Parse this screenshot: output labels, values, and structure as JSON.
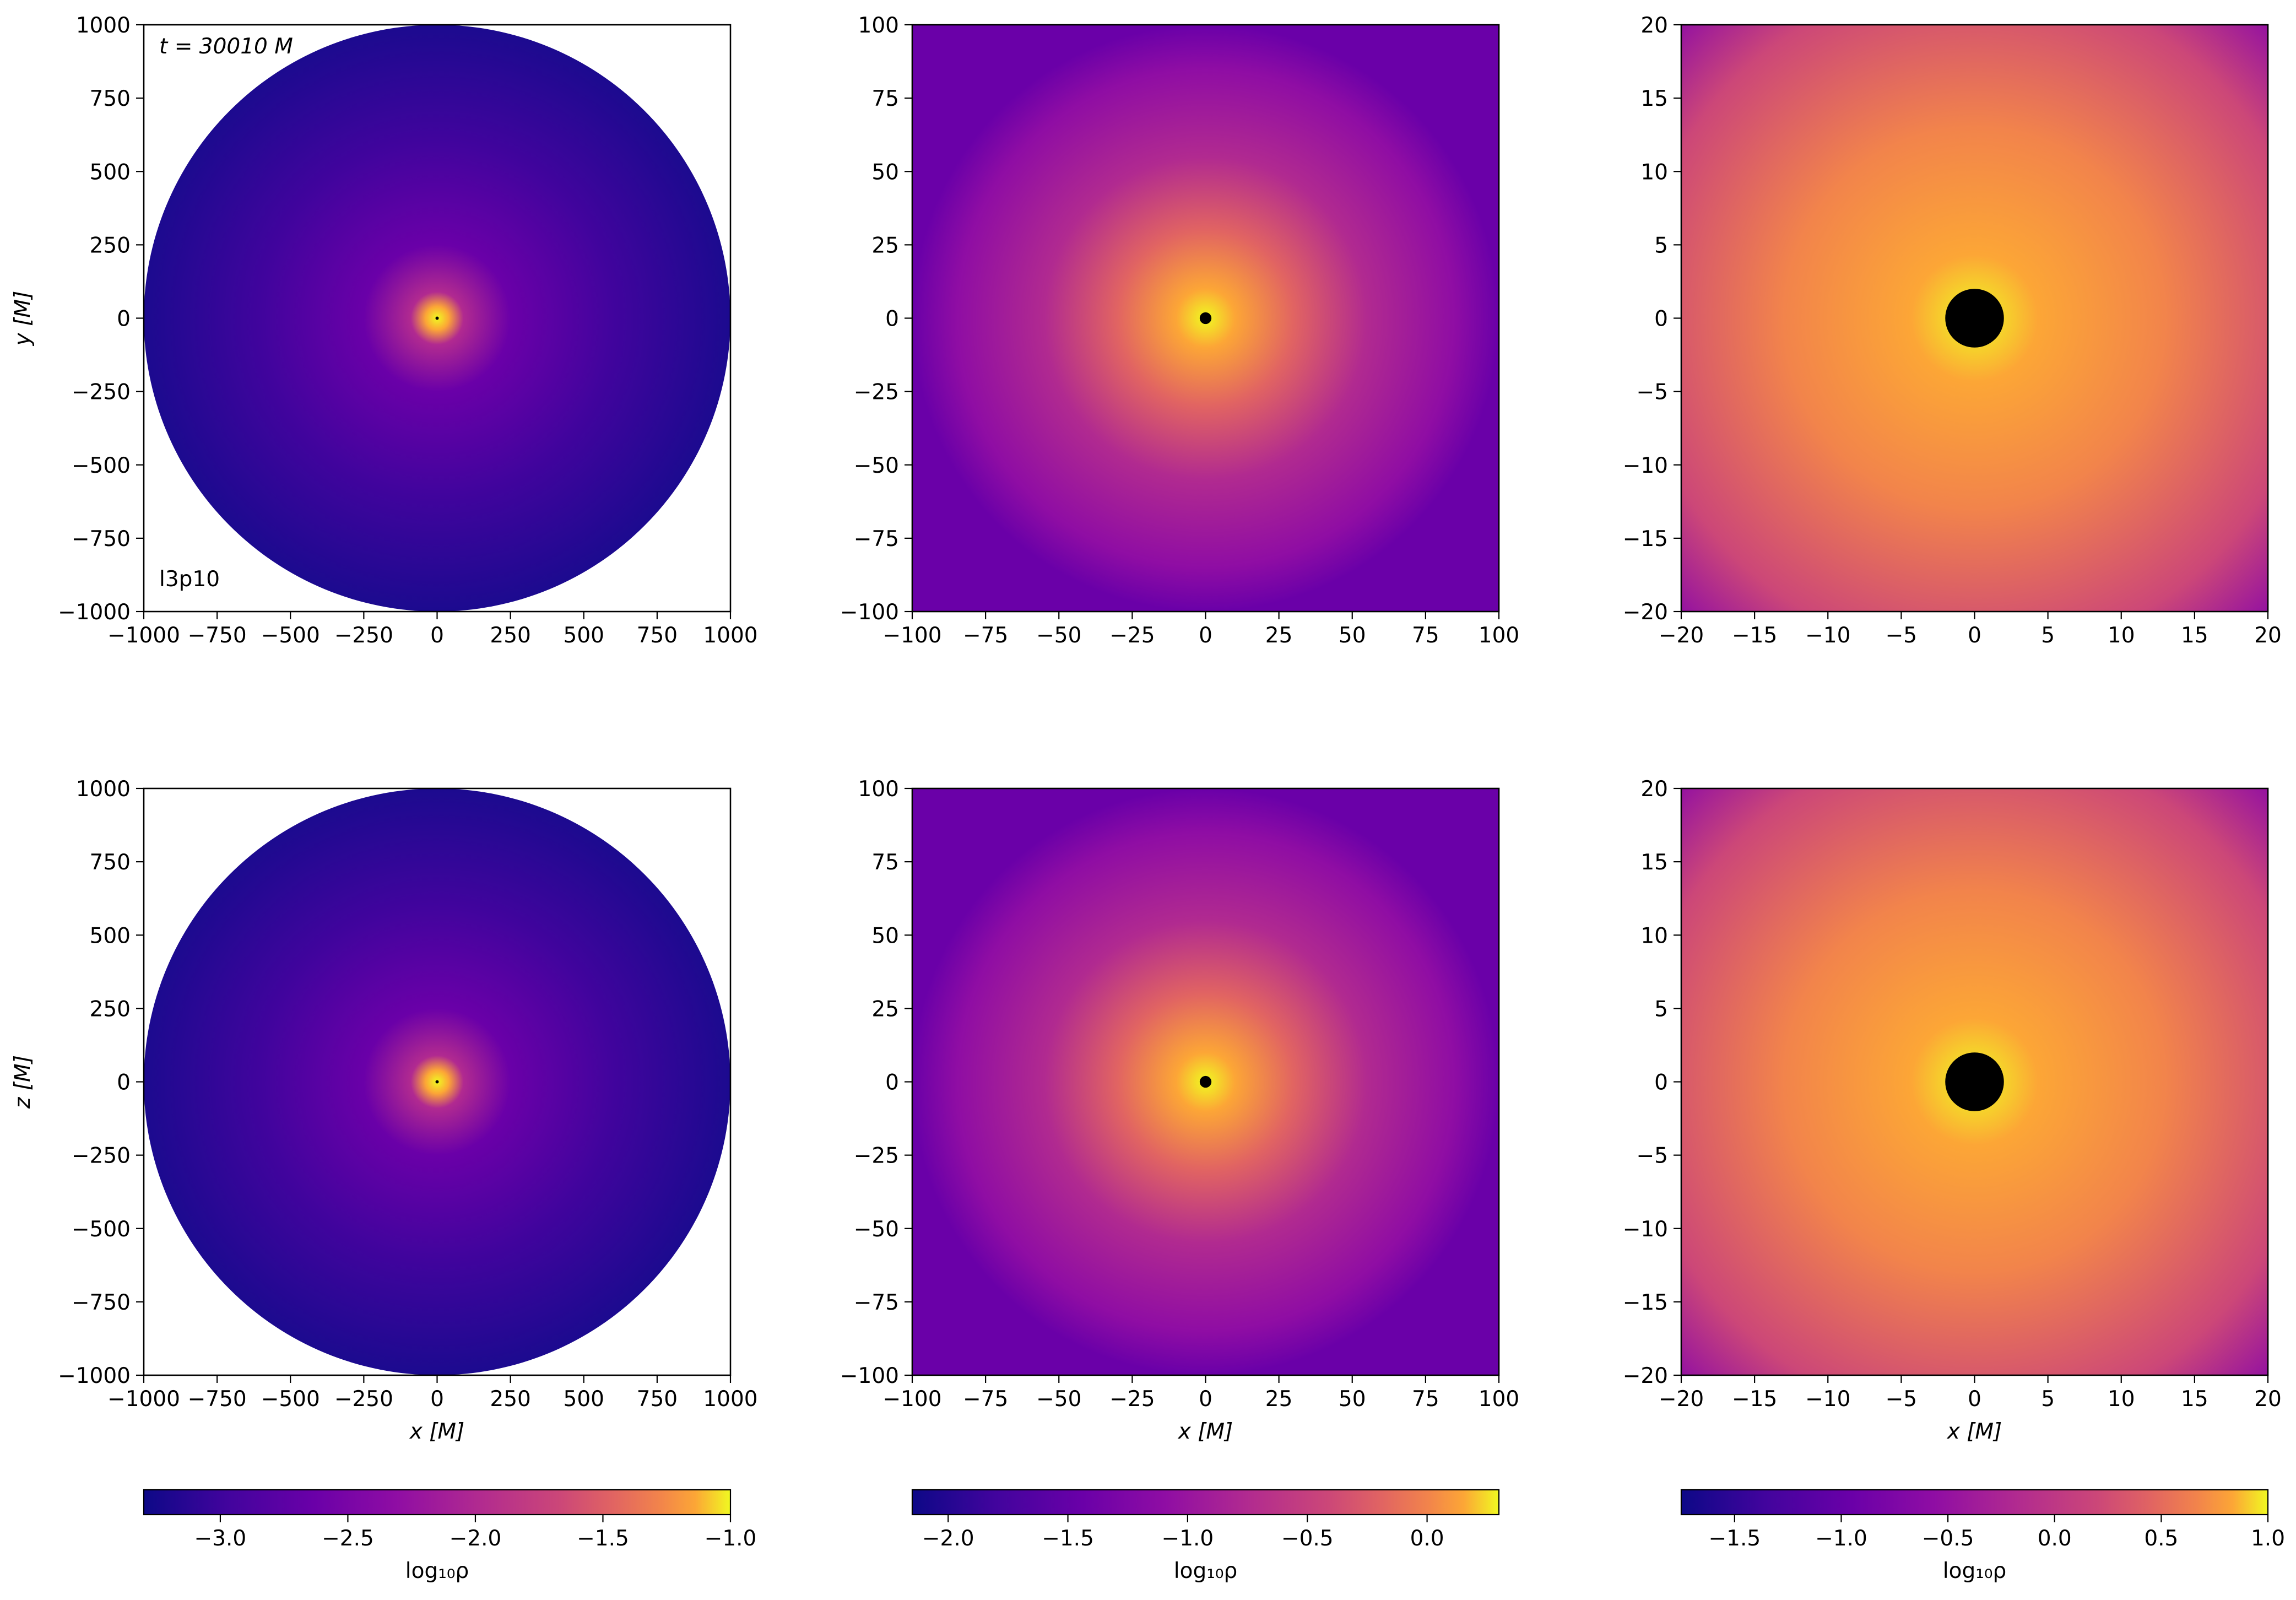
{
  "chart_data": [
    {
      "type": "heatmap",
      "plane": "x-y",
      "xlim": [
        -1000,
        1000
      ],
      "ylim": [
        -1000,
        1000
      ],
      "xticks": [
        "−1000",
        "−750",
        "−500",
        "−250",
        "0",
        "250",
        "500",
        "750",
        "1000"
      ],
      "yticks": [
        "1000",
        "750",
        "500",
        "250",
        "0",
        "−250",
        "−500",
        "−750",
        "−1000"
      ],
      "xlabel": "",
      "ylabel": "y [M]",
      "circular_domain": true,
      "horizon_radius": 2,
      "time_label": "t = 30010 M",
      "run_label": "l3p10",
      "colorbar": 0
    },
    {
      "type": "heatmap",
      "plane": "x-y",
      "xlim": [
        -100,
        100
      ],
      "ylim": [
        -100,
        100
      ],
      "xticks": [
        "−100",
        "−75",
        "−50",
        "−25",
        "0",
        "25",
        "50",
        "75",
        "100"
      ],
      "yticks": [
        "100",
        "75",
        "50",
        "25",
        "0",
        "−25",
        "−50",
        "−75",
        "−100"
      ],
      "xlabel": "",
      "ylabel": "",
      "circular_domain": false,
      "horizon_radius": 2,
      "colorbar": 1
    },
    {
      "type": "heatmap",
      "plane": "x-y",
      "xlim": [
        -20,
        20
      ],
      "ylim": [
        -20,
        20
      ],
      "xticks": [
        "−20",
        "−15",
        "−10",
        "−5",
        "0",
        "5",
        "10",
        "15",
        "20"
      ],
      "yticks": [
        "20",
        "15",
        "10",
        "5",
        "0",
        "−5",
        "−10",
        "−15",
        "−20"
      ],
      "xlabel": "",
      "ylabel": "",
      "circular_domain": false,
      "horizon_radius": 2,
      "colorbar": 2
    },
    {
      "type": "heatmap",
      "plane": "x-z",
      "xlim": [
        -1000,
        1000
      ],
      "ylim": [
        -1000,
        1000
      ],
      "xticks": [
        "−1000",
        "−750",
        "−500",
        "−250",
        "0",
        "250",
        "500",
        "750",
        "1000"
      ],
      "yticks": [
        "1000",
        "750",
        "500",
        "250",
        "0",
        "−250",
        "−500",
        "−750",
        "−1000"
      ],
      "xlabel": "x [M]",
      "ylabel": "z [M]",
      "circular_domain": true,
      "horizon_radius": 2,
      "colorbar": 0
    },
    {
      "type": "heatmap",
      "plane": "x-z",
      "xlim": [
        -100,
        100
      ],
      "ylim": [
        -100,
        100
      ],
      "xticks": [
        "−100",
        "−75",
        "−50",
        "−25",
        "0",
        "25",
        "50",
        "75",
        "100"
      ],
      "yticks": [
        "100",
        "75",
        "50",
        "25",
        "0",
        "−25",
        "−50",
        "−75",
        "−100"
      ],
      "xlabel": "x [M]",
      "ylabel": "",
      "circular_domain": false,
      "horizon_radius": 2,
      "colorbar": 1
    },
    {
      "type": "heatmap",
      "plane": "x-z",
      "xlim": [
        -20,
        20
      ],
      "ylim": [
        -20,
        20
      ],
      "xticks": [
        "−20",
        "−15",
        "−10",
        "−5",
        "0",
        "5",
        "10",
        "15",
        "20"
      ],
      "yticks": [
        "20",
        "15",
        "10",
        "5",
        "0",
        "−5",
        "−10",
        "−15",
        "−20"
      ],
      "xlabel": "x [M]",
      "ylabel": "",
      "circular_domain": false,
      "horizon_radius": 2,
      "colorbar": 2
    }
  ],
  "colorbars": [
    {
      "range": [
        -3.3,
        -1.0
      ],
      "ticks": [
        -3.0,
        -2.5,
        -2.0,
        -1.5,
        -1.0
      ],
      "tick_labels": [
        "−3.0",
        "−2.5",
        "−2.0",
        "−1.5",
        "−1.0"
      ],
      "label": "log₁₀ρ"
    },
    {
      "range": [
        -2.15,
        0.3
      ],
      "ticks": [
        -2.0,
        -1.5,
        -1.0,
        -0.5,
        0.0
      ],
      "tick_labels": [
        "−2.0",
        "−1.5",
        "−1.0",
        "−0.5",
        "0.0"
      ],
      "label": "log₁₀ρ"
    },
    {
      "range": [
        -1.75,
        1.0
      ],
      "ticks": [
        -1.5,
        -1.0,
        -0.5,
        0.0,
        0.5,
        1.0
      ],
      "tick_labels": [
        "−1.5",
        "−1.0",
        "−0.5",
        "0.0",
        "0.5",
        "1.0"
      ],
      "label": "log₁₀ρ"
    }
  ],
  "colormap": "plasma",
  "colors": {
    "low": "#0d0887",
    "mid": "#cc4778",
    "high": "#f0f921",
    "horizon": "#000000"
  }
}
